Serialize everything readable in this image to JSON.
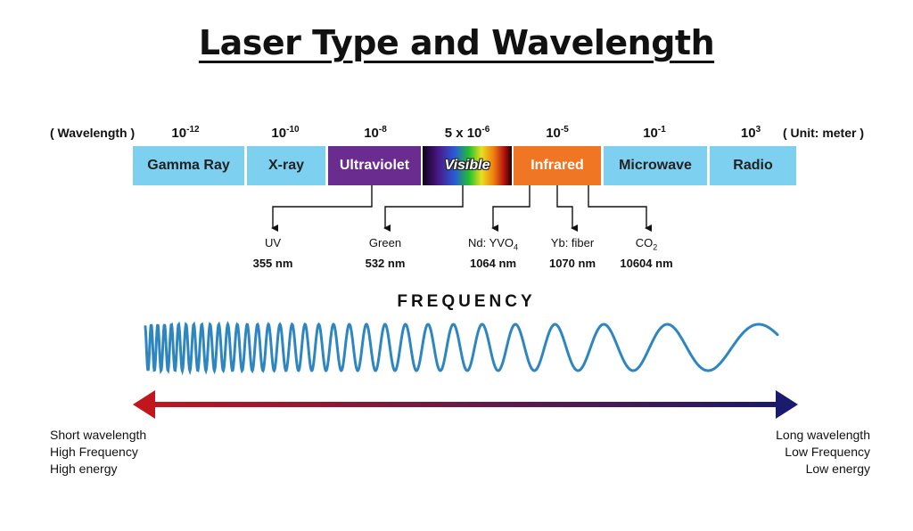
{
  "title": "Laser Type and Wavelength",
  "wavelength_label": "( Wavelength )",
  "unit_label": "( Unit: meter )",
  "exponents": [
    {
      "base": "10",
      "sup": "-12"
    },
    {
      "base": "10",
      "sup": "-10"
    },
    {
      "base": "10",
      "sup": "-8"
    },
    {
      "base": "5 x 10",
      "sup": "-6"
    },
    {
      "base": "10",
      "sup": "-5"
    },
    {
      "base": "10",
      "sup": "-1"
    },
    {
      "base": "10",
      "sup": "3"
    }
  ],
  "bands": [
    {
      "label": "Gamma Ray",
      "color": "#7dd0f0"
    },
    {
      "label": "X-ray",
      "color": "#7dd0f0"
    },
    {
      "label": "Ultraviolet",
      "color": "#6a2c8e"
    },
    {
      "label": "Visible",
      "color": "gradient"
    },
    {
      "label": "Infrared",
      "color": "#f07624"
    },
    {
      "label": "Microwave",
      "color": "#7dd0f0"
    },
    {
      "label": "Radio",
      "color": "#7dd0f0"
    }
  ],
  "lasers": [
    {
      "name": "UV",
      "name_sub": "",
      "value": "355 nm"
    },
    {
      "name": "Green",
      "name_sub": "",
      "value": "532 nm"
    },
    {
      "name": "Nd: YVO",
      "name_sub": "4",
      "value": "1064 nm"
    },
    {
      "name": "Yb: fiber",
      "name_sub": "",
      "value": "1070 nm"
    },
    {
      "name": "CO",
      "name_sub": "2",
      "value": "10604 nm"
    }
  ],
  "frequency_label": "FREQUENCY",
  "left_notes": [
    "Short wavelength",
    "High Frequency",
    "High energy"
  ],
  "right_notes": [
    "Long wavelength",
    "Low Frequency",
    "Low energy"
  ],
  "colors": {
    "wave": "#2e86c1",
    "arrow_left": "#c0161e",
    "arrow_right": "#1a1a6e"
  }
}
